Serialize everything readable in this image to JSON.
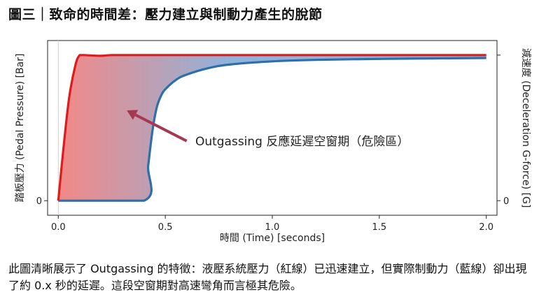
{
  "page_title": "圖三｜致命的時間差：壓力建立與制動力產生的脫節",
  "caption": "此圖清晰展示了 Outgassing 的特徵：液壓系統壓力（紅線）已迅速建立，但實際制動力（藍線）卻出現了約 0.x 秒的延遲。這段空窗期對高速彎角而言極其危險。",
  "chart_data": {
    "type": "line",
    "title": "",
    "xlabel": "時間 (Time) [seconds]",
    "ylabel_left": "踏板壓力 (Pedal Pressure) [Bar]",
    "ylabel_right": "減速度 (Deceleration G-force) [G]",
    "xlim": [
      -0.05,
      2.05
    ],
    "ylim": [
      -0.1,
      1.1
    ],
    "x_ticks": [
      0.0,
      0.5,
      1.0,
      1.5,
      2.0
    ],
    "x_tick_labels": [
      "0.0",
      "0.5",
      "1.0",
      "1.5",
      "2.0"
    ],
    "y_left_ticks": [
      0
    ],
    "y_left_tick_labels": [
      "0"
    ],
    "y_right_ticks": [
      0,
      1.0
    ],
    "y_right_tick_labels": [
      "0",
      ""
    ],
    "grid": "vertical at x = 0.0",
    "colors": {
      "pressure_line": "#e31a1c",
      "decel_line": "#2e6fa8",
      "fill_left": "#ef8a8a",
      "fill_right": "#8fb3db",
      "arrow": "#a43a52"
    },
    "series": [
      {
        "key": "pressure",
        "x": [
          0.0,
          0.02,
          0.05,
          0.08,
          0.1,
          0.12,
          0.2,
          0.25,
          0.4,
          0.6,
          1.0,
          1.5,
          2.0
        ],
        "y": [
          0.0,
          0.3,
          0.7,
          0.93,
          1.0,
          1.0,
          0.995,
          1.0,
          1.0,
          1.0,
          1.0,
          1.0,
          1.0
        ]
      },
      {
        "key": "deceleration",
        "x": [
          0.0,
          0.4,
          0.42,
          0.44,
          0.46,
          0.48,
          0.5,
          0.55,
          0.6,
          0.7,
          0.8,
          1.0,
          1.2,
          1.5,
          1.75,
          2.0
        ],
        "y": [
          0.0,
          0.0,
          0.24,
          0.48,
          0.64,
          0.72,
          0.765,
          0.83,
          0.866,
          0.91,
          0.935,
          0.957,
          0.967,
          0.974,
          0.977,
          0.98
        ]
      }
    ],
    "annotation": {
      "text": "Outgassing 反應延遲空窗期（危險區）",
      "arrow_from": [
        0.6,
        0.41
      ],
      "arrow_to": [
        0.32,
        0.62
      ],
      "text_at": [
        0.64,
        0.41
      ]
    }
  }
}
